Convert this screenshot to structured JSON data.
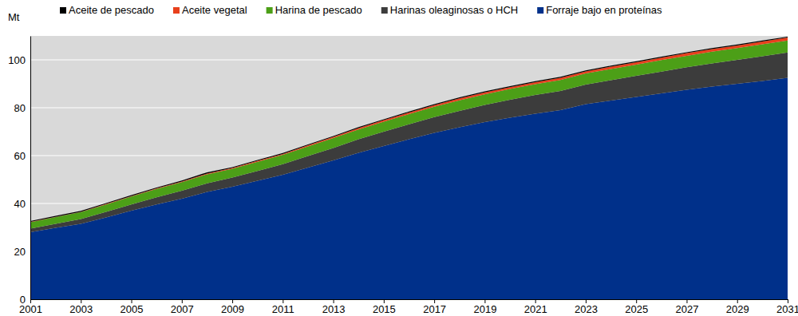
{
  "chart_data": {
    "type": "area",
    "stacked": true,
    "grid": true,
    "legend": "top",
    "y_label": "Mt",
    "x": [
      2001,
      2002,
      2003,
      2004,
      2005,
      2006,
      2007,
      2008,
      2009,
      2010,
      2011,
      2012,
      2013,
      2014,
      2015,
      2016,
      2017,
      2018,
      2019,
      2020,
      2021,
      2022,
      2023,
      2024,
      2025,
      2026,
      2027,
      2028,
      2029,
      2030,
      2031
    ],
    "xlim": [
      2001,
      2031
    ],
    "xticks": [
      2001,
      2003,
      2005,
      2007,
      2009,
      2011,
      2013,
      2015,
      2017,
      2019,
      2021,
      2023,
      2025,
      2027,
      2029,
      2031
    ],
    "ylim": [
      0,
      110
    ],
    "yticks": [
      0,
      20,
      40,
      60,
      80,
      100
    ],
    "series": [
      {
        "name": "Aceite de pescado",
        "color": "#000000",
        "values": [
          0.4,
          0.4,
          0.4,
          0.4,
          0.4,
          0.4,
          0.4,
          0.5,
          0.4,
          0.4,
          0.4,
          0.4,
          0.4,
          0.4,
          0.4,
          0.4,
          0.4,
          0.4,
          0.4,
          0.4,
          0.4,
          0.4,
          0.4,
          0.4,
          0.4,
          0.4,
          0.4,
          0.4,
          0.4,
          0.4,
          0.4
        ]
      },
      {
        "name": "Aceite vegetal",
        "color": "#e8401c",
        "values": [
          0.1,
          0.1,
          0.1,
          0.2,
          0.2,
          0.2,
          0.3,
          0.3,
          0.3,
          0.4,
          0.4,
          0.5,
          0.5,
          0.6,
          0.6,
          0.7,
          0.7,
          0.8,
          0.8,
          0.8,
          0.9,
          0.9,
          0.9,
          1,
          1,
          1,
          1.1,
          1.1,
          1.1,
          1.2,
          1.2
        ]
      },
      {
        "name": "Harina de pescado",
        "color": "#4c9f17",
        "values": [
          2.7,
          2.8,
          2.9,
          3.1,
          3.3,
          3.5,
          3.6,
          3.8,
          3.7,
          3.8,
          3.9,
          4,
          4.1,
          4.1,
          4.2,
          4.2,
          4.3,
          4.4,
          4.4,
          4.5,
          4.5,
          4.6,
          4.6,
          4.7,
          4.7,
          4.8,
          4.8,
          4.9,
          4.9,
          5,
          5
        ]
      },
      {
        "name": "Harinas oleaginosas o HCH",
        "color": "#3c3c3c",
        "values": [
          1.5,
          1.7,
          2,
          2.3,
          2.6,
          3,
          3.3,
          3.6,
          3.8,
          4.1,
          4.4,
          4.8,
          5.2,
          5.6,
          6,
          6.3,
          6.6,
          6.9,
          7.2,
          7.5,
          7.8,
          8,
          8.2,
          8.5,
          8.8,
          9.1,
          9.4,
          9.7,
          10,
          10.3,
          10.6
        ]
      },
      {
        "name": "Forraje bajo en proteínas",
        "color": "#00308a",
        "values": [
          28,
          29.8,
          31.5,
          34.2,
          37,
          39.6,
          42,
          44.8,
          47,
          49.5,
          52,
          55,
          58,
          61.2,
          64,
          66.8,
          69.5,
          71.8,
          74,
          75.8,
          77.5,
          79,
          81.5,
          83,
          84.5,
          86,
          87.5,
          88.8,
          90,
          91.2,
          92.5
        ]
      }
    ]
  }
}
